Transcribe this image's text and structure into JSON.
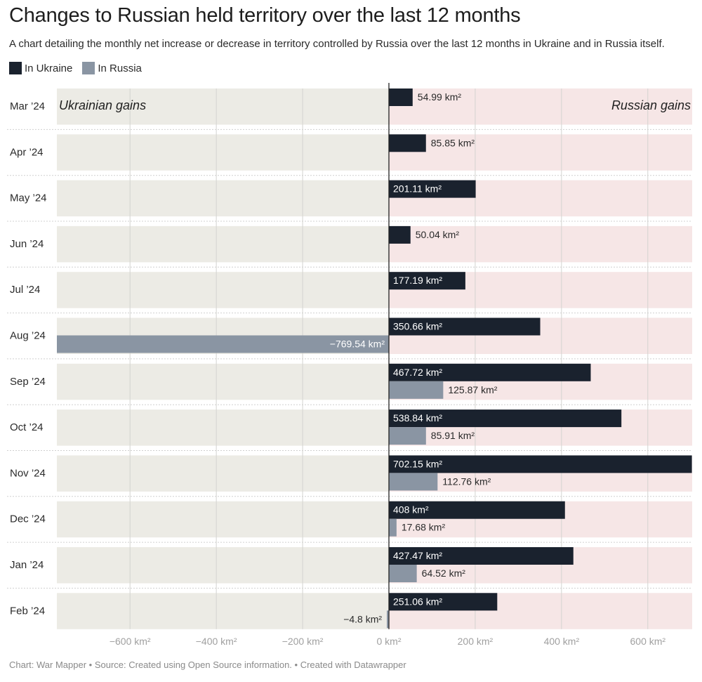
{
  "title": "Changes to Russian held territory over the last 12 months",
  "subtitle": "A chart detailing the monthly net increase or decrease in territory controlled by Russia over the last 12 months in Ukraine and in Russia itself.",
  "footer": "Chart: War Mapper • Source: Created using Open Source information.  • Created with Datawrapper",
  "colors": {
    "ukraine": "#1a222e",
    "russia": "#8a95a3",
    "bg_left": "#ecebe5",
    "bg_right": "#f6e6e6",
    "axis": "#222222",
    "grid": "#d3d3d0",
    "separator": "#d0d0d0"
  },
  "chart_data": {
    "type": "bar",
    "orientation": "horizontal",
    "title": "Changes to Russian held territory over the last 12 months",
    "categories": [
      "Mar ’24",
      "Apr ’24",
      "May ’24",
      "Jun ’24",
      "Jul ’24",
      "Aug ’24",
      "Sep ’24",
      "Oct ’24",
      "Nov ’24",
      "Dec ’24",
      "Jan ’24",
      "Feb ’24"
    ],
    "series": [
      {
        "name": "In Ukraine",
        "values": [
          54.99,
          85.85,
          201.11,
          50.04,
          177.19,
          350.66,
          467.72,
          538.84,
          702.15,
          408,
          427.47,
          251.06
        ],
        "labels": [
          "54.99 km²",
          "85.85 km²",
          "201.11 km²",
          "50.04 km²",
          "177.19 km²",
          "350.66 km²",
          "467.72 km²",
          "538.84 km²",
          "702.15 km²",
          "408 km²",
          "427.47 km²",
          "251.06 km²"
        ]
      },
      {
        "name": "In Russia",
        "values": [
          null,
          null,
          null,
          null,
          null,
          -769.54,
          125.87,
          85.91,
          112.76,
          17.68,
          64.52,
          -4.8
        ],
        "labels": [
          "",
          "",
          "",
          "",
          "",
          "−769.54 km²",
          "125.87 km²",
          "85.91 km²",
          "112.76 km²",
          "17.68 km²",
          "64.52 km²",
          "−4.8 km²"
        ]
      }
    ],
    "xlim": [
      -769.54,
      702.15
    ],
    "ticks": [
      -600,
      -400,
      -200,
      0,
      200,
      400,
      600
    ],
    "tick_labels": [
      "−600 km²",
      "−400 km²",
      "−200 km²",
      "0 km²",
      "200 km²",
      "400 km²",
      "600 km²"
    ],
    "left_region_label": "Ukrainian gains",
    "right_region_label": "Russian gains",
    "legend": [
      "In Ukraine",
      "In Russia"
    ],
    "legend_position": "top-left",
    "grid": true
  }
}
